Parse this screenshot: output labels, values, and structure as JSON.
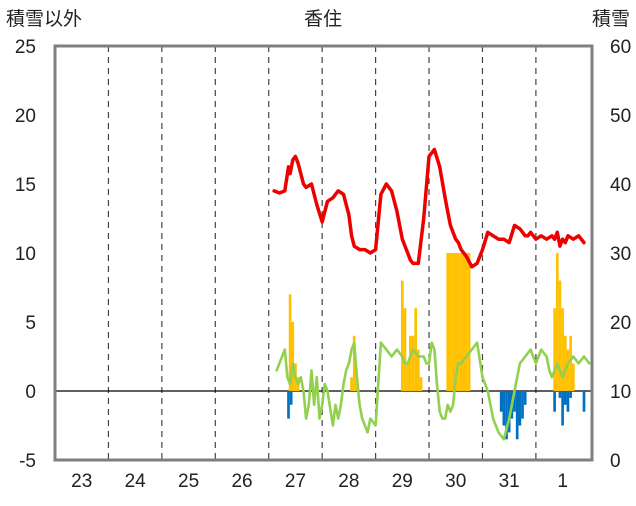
{
  "chart_data": {
    "type": "bar",
    "title": "香住",
    "ylabel_left": "積雪以外",
    "ylabel_right": "積雪",
    "x_tick_labels": [
      "23",
      "24",
      "25",
      "26",
      "27",
      "28",
      "29",
      "30",
      "31",
      "1"
    ],
    "x_range": [
      22.5,
      32.55
    ],
    "ylim_left": [
      -5,
      25
    ],
    "ylim_right": [
      0,
      60
    ],
    "y_ticks_left": [
      -5,
      0,
      5,
      10,
      15,
      20,
      25
    ],
    "y_ticks_right": [
      0,
      10,
      20,
      30,
      40,
      50,
      60
    ],
    "grid": "vertical dashed at day boundaries",
    "colors": {
      "snow_depth": "#ee0000",
      "temperature": "#92d050",
      "precipitation": "#ffc000",
      "snow_change_negative": "#0070c0",
      "frame": "#7f7f7f",
      "grid": "#444444"
    },
    "series": [
      {
        "axis": "right",
        "kind": "line",
        "color": "#ee0000",
        "x": [
          26.6,
          26.7,
          26.8,
          26.87,
          26.9,
          26.95,
          27.0,
          27.05,
          27.1,
          27.15,
          27.2,
          27.3,
          27.4,
          27.5,
          27.55,
          27.6,
          27.7,
          27.75,
          27.8,
          27.9,
          28.0,
          28.05,
          28.1,
          28.2,
          28.3,
          28.4,
          28.5,
          28.6,
          28.7,
          28.8,
          28.9,
          29.0,
          29.05,
          29.1,
          29.15,
          29.2,
          29.3,
          29.4,
          29.5,
          29.6,
          29.7,
          29.8,
          29.85,
          29.9,
          30.0,
          30.05,
          30.1,
          30.2,
          30.3,
          30.4,
          30.5,
          30.6,
          30.7,
          30.8,
          30.9,
          31.0,
          31.1,
          31.2,
          31.3,
          31.35,
          31.4,
          31.5,
          31.6,
          31.7,
          31.8,
          31.85,
          31.9,
          31.95,
          32.0,
          32.05,
          32.1,
          32.2,
          32.3,
          32.4
        ],
        "values": [
          39.0,
          38.7,
          39.0,
          42.5,
          41.5,
          43.5,
          44.0,
          43.0,
          41.5,
          40.0,
          39.5,
          40.0,
          37.0,
          34.5,
          36.0,
          37.5,
          38.0,
          38.5,
          39.0,
          38.5,
          35.5,
          32.5,
          31.0,
          30.5,
          30.5,
          30.0,
          30.5,
          38.5,
          40.0,
          39.0,
          36.0,
          32.0,
          31.0,
          30.0,
          29.0,
          28.5,
          28.5,
          35.0,
          44.0,
          45.0,
          42.5,
          38.0,
          36.0,
          34.0,
          32.0,
          31.5,
          30.5,
          29.5,
          28.0,
          28.5,
          30.5,
          33.0,
          32.5,
          32.0,
          32.0,
          31.5,
          34.0,
          33.5,
          32.5,
          32.5,
          33.0,
          32.0,
          32.5,
          32.0,
          32.5,
          32.0,
          33.0,
          31.0,
          32.0,
          31.5,
          32.5,
          32.0,
          32.5,
          31.5
        ]
      },
      {
        "axis": "left",
        "kind": "line",
        "color": "#92d050",
        "x": [
          26.65,
          26.7,
          26.75,
          26.8,
          26.85,
          26.9,
          26.95,
          27.0,
          27.05,
          27.1,
          27.15,
          27.2,
          27.25,
          27.3,
          27.35,
          27.4,
          27.45,
          27.5,
          27.55,
          27.6,
          27.7,
          27.75,
          27.8,
          27.85,
          27.9,
          27.95,
          28.0,
          28.05,
          28.1,
          28.15,
          28.2,
          28.25,
          28.3,
          28.35,
          28.4,
          28.5,
          28.6,
          28.7,
          28.8,
          28.9,
          29.0,
          29.05,
          29.1,
          29.15,
          29.2,
          29.3,
          29.4,
          29.45,
          29.5,
          29.55,
          29.6,
          29.65,
          29.7,
          29.75,
          29.8,
          29.85,
          29.9,
          29.95,
          30.0,
          30.05,
          30.1,
          30.2,
          30.3,
          30.4,
          30.5,
          30.6,
          30.7,
          30.8,
          30.9,
          31.0,
          31.1,
          31.2,
          31.3,
          31.4,
          31.5,
          31.6,
          31.7,
          31.75,
          31.8,
          31.85,
          31.9,
          31.95,
          32.0,
          32.1,
          32.2,
          32.3,
          32.4,
          32.5
        ],
        "values": [
          1.5,
          2.0,
          2.5,
          3.0,
          1.0,
          0.5,
          2.0,
          1.0,
          0.5,
          1.0,
          0.0,
          -2.0,
          -1.0,
          1.5,
          -1.0,
          1.0,
          -2.0,
          -1.0,
          0.5,
          0.0,
          -2.5,
          -1.0,
          -2.0,
          -1.0,
          0.5,
          1.5,
          2.0,
          3.0,
          3.5,
          1.0,
          -1.0,
          -2.0,
          -2.5,
          -3.0,
          -2.0,
          -2.5,
          3.5,
          3.0,
          2.5,
          3.0,
          2.5,
          2.0,
          2.0,
          2.5,
          3.0,
          2.5,
          2.5,
          2.0,
          2.0,
          3.5,
          3.0,
          0.5,
          -1.5,
          -2.0,
          -2.0,
          -1.0,
          -1.5,
          -1.0,
          1.0,
          2.0,
          2.0,
          2.5,
          3.0,
          3.5,
          1.0,
          0.0,
          -2.0,
          -3.0,
          -3.5,
          -2.0,
          0.0,
          2.0,
          2.5,
          3.0,
          2.0,
          3.0,
          2.5,
          1.5,
          1.0,
          1.5,
          2.0,
          1.5,
          1.0,
          2.0,
          2.5,
          2.0,
          2.5,
          2.0
        ]
      },
      {
        "axis": "left",
        "kind": "bar",
        "color": "#ffc000",
        "x": [
          26.9,
          26.95,
          27.0,
          27.05,
          28.05,
          28.1,
          28.15,
          29.0,
          29.05,
          29.1,
          29.15,
          29.2,
          29.25,
          29.3,
          29.35,
          29.85,
          29.9,
          29.95,
          30.0,
          30.05,
          30.1,
          30.15,
          30.2,
          30.25,
          31.85,
          31.9,
          31.95,
          32.0,
          32.05,
          32.1,
          32.15,
          32.2
        ],
        "values": [
          7.0,
          5.0,
          2.0,
          1.0,
          1.0,
          4.0,
          1.0,
          8.0,
          6.0,
          2.0,
          4.0,
          4.0,
          6.0,
          3.0,
          1.0,
          10.0,
          10.0,
          10.0,
          10.0,
          10.0,
          10.0,
          10.0,
          10.0,
          10.0,
          6.0,
          10.0,
          8.0,
          6.0,
          4.0,
          3.0,
          4.0,
          2.0
        ]
      },
      {
        "axis": "left",
        "kind": "bar",
        "color": "#0070c0",
        "x": [
          26.87,
          26.92,
          30.85,
          30.9,
          30.95,
          31.0,
          31.05,
          31.1,
          31.15,
          31.2,
          31.25,
          31.3,
          31.85,
          31.95,
          32.0,
          32.05,
          32.1,
          32.15,
          32.4
        ],
        "values": [
          -2.0,
          -1.0,
          -1.5,
          -2.5,
          -3.5,
          -3.0,
          -2.0,
          -1.5,
          -3.5,
          -2.5,
          -2.0,
          -1.0,
          -1.5,
          -0.5,
          -2.5,
          -1.0,
          -1.5,
          -0.5,
          -1.5
        ]
      }
    ]
  }
}
